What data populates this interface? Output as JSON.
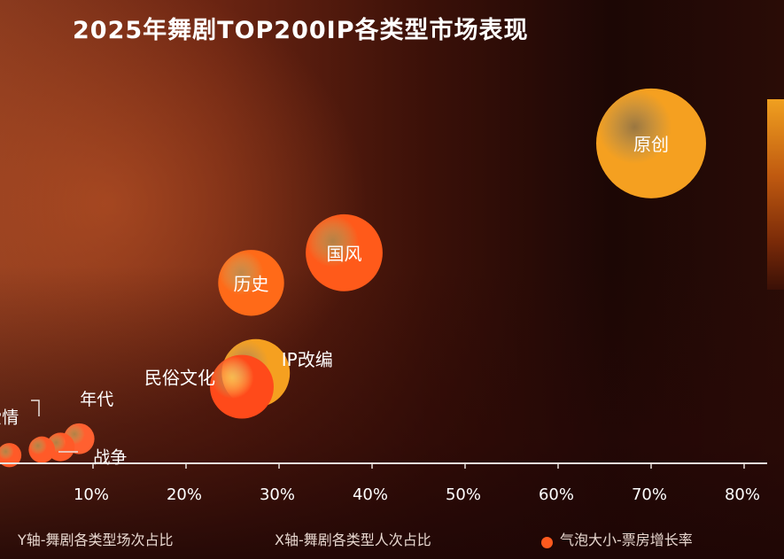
{
  "chart_data": {
    "type": "bubble",
    "title": "2025年舞剧TOP200IP各类型市场表现",
    "x_ticks": [
      "10%",
      "20%",
      "30%",
      "40%",
      "50%",
      "60%",
      "70%",
      "80%"
    ],
    "xlim": [
      0,
      80
    ],
    "ylim": [
      0,
      75
    ],
    "series": [
      {
        "label": "原创",
        "x": 70,
        "y": 58.5,
        "size": 100,
        "color": "#f5a020",
        "label_color": "#ffffff"
      },
      {
        "label": "国风",
        "x": 37,
        "y": 38.5,
        "size": 70,
        "color": "#ff5a1a",
        "label_color": "#ffffff"
      },
      {
        "label": "历史",
        "x": 27,
        "y": 33,
        "size": 60,
        "color": "#ff6a18",
        "label_color": "#ffffff"
      },
      {
        "label": "IP改编",
        "x": 27.5,
        "y": 16.5,
        "size": 62,
        "color": "#f5a020",
        "label_color": "#ffffff"
      },
      {
        "label": "民俗文化",
        "x": 26,
        "y": 14,
        "size": 58,
        "color": "#ff4a1a",
        "label_color": "#ffffff"
      },
      {
        "label": "年代",
        "x": 8.5,
        "y": 4.5,
        "size": 28,
        "color": "#ff6030",
        "label_color": "#ffffff"
      },
      {
        "label": "战争",
        "x": 6.5,
        "y": 3,
        "size": 26,
        "color": "#ff5a28",
        "label_color": "#ffffff"
      },
      {
        "label": "爱情",
        "x": 4.5,
        "y": 2.5,
        "size": 24,
        "color": "#ff5a28",
        "label_color": "#ffffff"
      },
      {
        "label": "",
        "x": 1,
        "y": 1.5,
        "size": 22,
        "color": "#ff5a28",
        "label_color": "#ffffff"
      }
    ]
  },
  "legend": {
    "y_axis": "Y轴-舞剧各类型场次占比",
    "x_axis": "X轴-舞剧各类型人次占比",
    "bubble": "气泡大小-票房增长率"
  },
  "colors": {
    "axis": "#e8e0dc",
    "tick_text": "#ffffff"
  }
}
